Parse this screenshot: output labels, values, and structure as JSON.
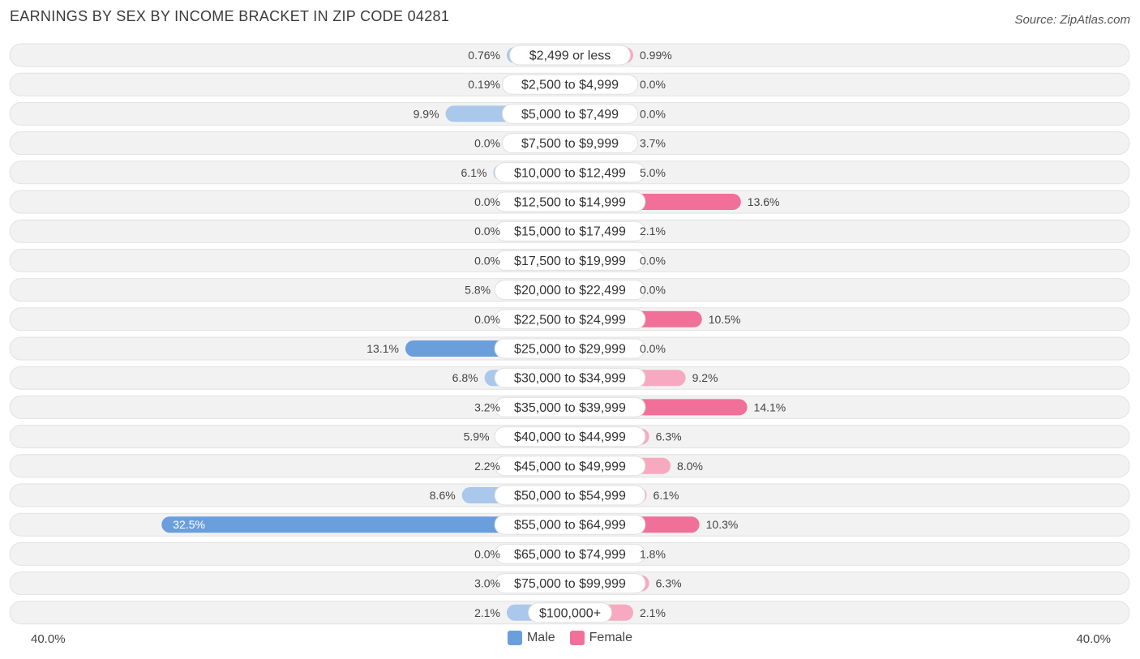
{
  "chart_data": {
    "type": "bar",
    "orientation": "horizontal-diverging",
    "title": "EARNINGS BY SEX BY INCOME BRACKET IN ZIP CODE 04281",
    "source": "Source: ZipAtlas.com",
    "axis_min_label": "40.0%",
    "axis_max_label": "40.0%",
    "axis_max": 40.0,
    "categories": [
      "$2,499 or less",
      "$2,500 to $4,999",
      "$5,000 to $7,499",
      "$7,500 to $9,999",
      "$10,000 to $12,499",
      "$12,500 to $14,999",
      "$15,000 to $17,499",
      "$17,500 to $19,999",
      "$20,000 to $22,499",
      "$22,500 to $24,999",
      "$25,000 to $29,999",
      "$30,000 to $34,999",
      "$35,000 to $39,999",
      "$40,000 to $44,999",
      "$45,000 to $49,999",
      "$50,000 to $54,999",
      "$55,000 to $64,999",
      "$65,000 to $74,999",
      "$75,000 to $99,999",
      "$100,000+"
    ],
    "series": [
      {
        "name": "Male",
        "color": "#6a9fdc",
        "light_color": "#a9c8ec",
        "values": [
          0.76,
          0.19,
          9.9,
          0.0,
          6.1,
          0.0,
          0.0,
          0.0,
          5.8,
          0.0,
          13.1,
          6.8,
          3.2,
          5.9,
          2.2,
          8.6,
          32.5,
          0.0,
          3.0,
          2.1
        ],
        "labels": [
          "0.76%",
          "0.19%",
          "9.9%",
          "0.0%",
          "6.1%",
          "0.0%",
          "0.0%",
          "0.0%",
          "5.8%",
          "0.0%",
          "13.1%",
          "6.8%",
          "3.2%",
          "5.9%",
          "2.2%",
          "8.6%",
          "32.5%",
          "0.0%",
          "3.0%",
          "2.1%"
        ]
      },
      {
        "name": "Female",
        "color": "#f0709a",
        "light_color": "#f6a9c1",
        "values": [
          0.99,
          0.0,
          0.0,
          3.7,
          5.0,
          13.6,
          2.1,
          0.0,
          0.0,
          10.5,
          0.0,
          9.2,
          14.1,
          6.3,
          8.0,
          6.1,
          10.3,
          1.8,
          6.3,
          2.1
        ],
        "labels": [
          "0.99%",
          "0.0%",
          "0.0%",
          "3.7%",
          "5.0%",
          "13.6%",
          "2.1%",
          "0.0%",
          "0.0%",
          "10.5%",
          "0.0%",
          "9.2%",
          "14.1%",
          "6.3%",
          "8.0%",
          "6.1%",
          "10.3%",
          "1.8%",
          "6.3%",
          "2.1%"
        ]
      }
    ],
    "legend": [
      "Male",
      "Female"
    ]
  }
}
